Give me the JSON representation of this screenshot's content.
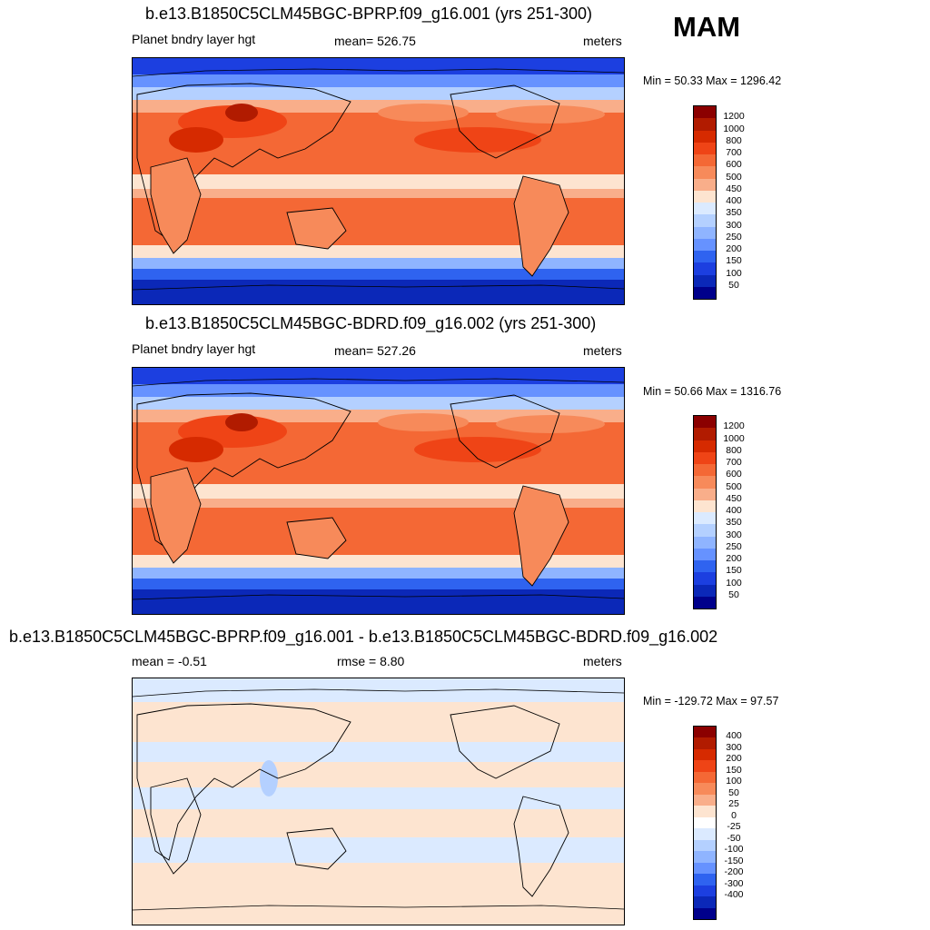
{
  "season": "MAM",
  "panels": [
    {
      "title": "b.e13.B1850C5CLM45BGC-BPRP.f09_g16.001 (yrs 251-300)",
      "variable": "Planet bndry layer hgt",
      "stat": "mean= 526.75",
      "units": "meters",
      "minmax": "Min =  50.33 Max = 1296.42",
      "colorbar_labels": [
        "1200",
        "1000",
        "800",
        "700",
        "600",
        "500",
        "450",
        "400",
        "350",
        "300",
        "250",
        "200",
        "150",
        "100",
        "50"
      ]
    },
    {
      "title": "b.e13.B1850C5CLM45BGC-BDRD.f09_g16.002 (yrs 251-300)",
      "variable": "Planet bndry layer hgt",
      "stat": "mean= 527.26",
      "units": "meters",
      "minmax": "Min =  50.66 Max = 1316.76",
      "colorbar_labels": [
        "1200",
        "1000",
        "800",
        "700",
        "600",
        "500",
        "450",
        "400",
        "350",
        "300",
        "250",
        "200",
        "150",
        "100",
        "50"
      ]
    },
    {
      "title": "b.e13.B1850C5CLM45BGC-BPRP.f09_g16.001 - b.e13.B1850C5CLM45BGC-BDRD.f09_g16.002",
      "stat_mean": "mean =  -0.51",
      "stat_rmse": "rmse =   8.80",
      "units": "meters",
      "minmax": "Min = -129.72 Max =  97.57",
      "colorbar_labels": [
        "400",
        "300",
        "200",
        "150",
        "100",
        "50",
        "25",
        "0",
        "-25",
        "-50",
        "-100",
        "-150",
        "-200",
        "-300",
        "-400"
      ]
    }
  ],
  "colors": {
    "scale": [
      "#8b0000",
      "#b11b00",
      "#d62a00",
      "#ef4416",
      "#f46835",
      "#f78a5a",
      "#f9ae8a",
      "#fde4d0",
      "#ffffff",
      "#dbeaff",
      "#b4d0ff",
      "#8fb4ff",
      "#6692ff",
      "#2f63f0",
      "#1c3fe0",
      "#0b28b8",
      "#00008b"
    ],
    "abs_scale": [
      "#8b0000",
      "#b11b00",
      "#d62a00",
      "#ef4416",
      "#f46835",
      "#f78a5a",
      "#f9ae8a",
      "#fde4d0",
      "#dbeaff",
      "#b4d0ff",
      "#8fb4ff",
      "#6692ff",
      "#2f63f0",
      "#1c3fe0",
      "#0b28b8",
      "#00008b"
    ],
    "diff_scale": [
      "#8b0000",
      "#b11b00",
      "#d62a00",
      "#ef4416",
      "#f46835",
      "#f78a5a",
      "#f9ae8a",
      "#fde4d0",
      "#ffffff",
      "#dbeaff",
      "#b4d0ff",
      "#8fb4ff",
      "#6692ff",
      "#2f63f0",
      "#1c3fe0",
      "#0b28b8",
      "#00008b"
    ]
  }
}
